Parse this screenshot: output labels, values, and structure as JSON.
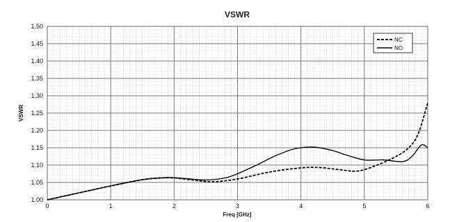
{
  "chart_data": {
    "type": "line",
    "title": "VSWR",
    "xlabel": "Freq [GHz]",
    "ylabel": "VSWR",
    "xlim": [
      0,
      6
    ],
    "ylim": [
      1.0,
      1.5
    ],
    "x_ticks": [
      "0",
      "1",
      "2",
      "3",
      "4",
      "5",
      "6"
    ],
    "y_ticks": [
      "1.00",
      "1.05",
      "1.10",
      "1.15",
      "1.20",
      "1.25",
      "1.30",
      "1.35",
      "1.40",
      "1.45",
      "1.50"
    ],
    "grid": true,
    "legend_position": "top-right",
    "series": [
      {
        "name": "NC",
        "style": "dashed",
        "color": "#000000",
        "x": [
          0,
          0.5,
          1.0,
          1.5,
          1.8,
          2.0,
          2.3,
          2.6,
          3.0,
          3.5,
          4.0,
          4.3,
          4.6,
          4.9,
          5.2,
          5.5,
          5.7,
          5.85,
          6.0
        ],
        "y": [
          1.0,
          1.02,
          1.04,
          1.058,
          1.063,
          1.063,
          1.057,
          1.052,
          1.06,
          1.08,
          1.092,
          1.093,
          1.087,
          1.083,
          1.1,
          1.125,
          1.15,
          1.19,
          1.28
        ]
      },
      {
        "name": "NO",
        "style": "solid",
        "color": "#000000",
        "x": [
          0,
          0.5,
          1.0,
          1.5,
          1.9,
          2.2,
          2.5,
          2.8,
          3.0,
          3.3,
          3.6,
          3.9,
          4.2,
          4.5,
          4.7,
          5.0,
          5.3,
          5.6,
          5.75,
          5.9,
          6.0
        ],
        "y": [
          1.0,
          1.02,
          1.04,
          1.058,
          1.064,
          1.061,
          1.057,
          1.063,
          1.075,
          1.1,
          1.127,
          1.147,
          1.152,
          1.142,
          1.13,
          1.115,
          1.115,
          1.11,
          1.125,
          1.158,
          1.15
        ]
      }
    ]
  }
}
